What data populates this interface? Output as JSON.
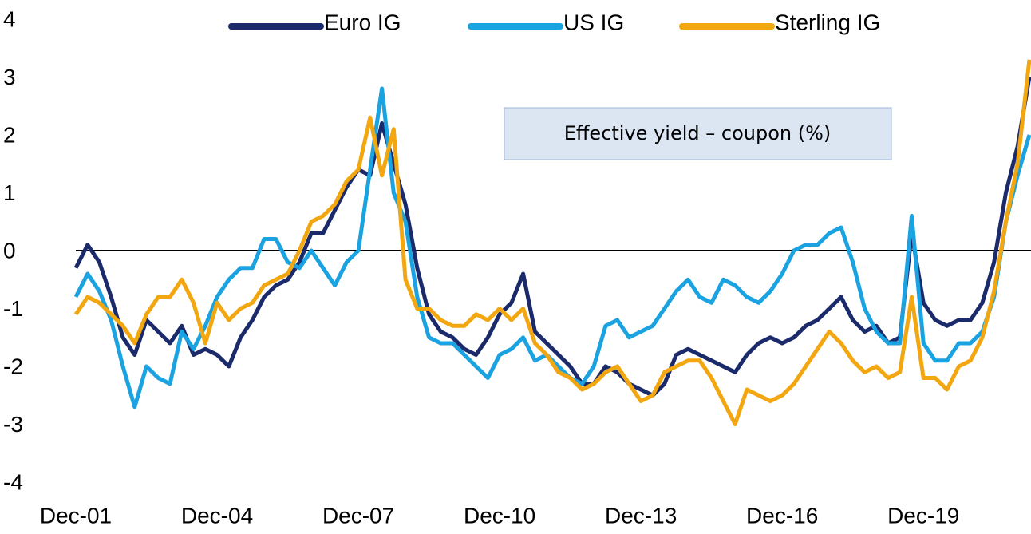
{
  "chart_data": {
    "type": "line",
    "annotation": "Effective yield – coupon (%)",
    "categories": [
      "Dec-01",
      null,
      null,
      null,
      null,
      null,
      null,
      null,
      null,
      null,
      null,
      null,
      "Dec-04",
      null,
      null,
      null,
      null,
      null,
      null,
      null,
      null,
      null,
      null,
      null,
      "Dec-07",
      null,
      null,
      null,
      null,
      null,
      null,
      null,
      null,
      null,
      null,
      null,
      "Dec-10",
      null,
      null,
      null,
      null,
      null,
      null,
      null,
      null,
      null,
      null,
      null,
      "Dec-13",
      null,
      null,
      null,
      null,
      null,
      null,
      null,
      null,
      null,
      null,
      null,
      "Dec-16",
      null,
      null,
      null,
      null,
      null,
      null,
      null,
      null,
      null,
      null,
      null,
      "Dec-19",
      null,
      null,
      null,
      null,
      null,
      null,
      null,
      null,
      null
    ],
    "series": [
      {
        "name": "Euro IG",
        "color": "#1b2a6b",
        "values": [
          -0.3,
          0.1,
          -0.2,
          -0.8,
          -1.5,
          -1.8,
          -1.2,
          -1.4,
          -1.6,
          -1.3,
          -1.8,
          -1.7,
          -1.8,
          -2.0,
          -1.5,
          -1.2,
          -0.8,
          -0.6,
          -0.5,
          -0.2,
          0.3,
          0.3,
          0.7,
          1.1,
          1.4,
          1.3,
          2.2,
          1.5,
          0.8,
          -0.3,
          -1.1,
          -1.4,
          -1.5,
          -1.7,
          -1.8,
          -1.5,
          -1.1,
          -0.9,
          -0.4,
          -1.4,
          -1.6,
          -1.8,
          -2.0,
          -2.3,
          -2.3,
          -2.0,
          -2.1,
          -2.3,
          -2.4,
          -2.5,
          -2.3,
          -1.8,
          -1.7,
          -1.8,
          -1.9,
          -2.0,
          -2.1,
          -1.8,
          -1.6,
          -1.5,
          -1.6,
          -1.5,
          -1.3,
          -1.2,
          -1.0,
          -0.8,
          -1.2,
          -1.4,
          -1.3,
          -1.6,
          -1.5,
          0.3,
          -0.9,
          -1.2,
          -1.3,
          -1.2,
          -1.2,
          -0.9,
          -0.2,
          1.0,
          1.8,
          3.0
        ]
      },
      {
        "name": "US IG",
        "color": "#1aa3e0",
        "values": [
          -0.8,
          -0.4,
          -0.7,
          -1.2,
          -2.0,
          -2.7,
          -2.0,
          -2.2,
          -2.3,
          -1.4,
          -1.7,
          -1.3,
          -0.8,
          -0.5,
          -0.3,
          -0.3,
          0.2,
          0.2,
          -0.2,
          -0.3,
          0.0,
          -0.3,
          -0.6,
          -0.2,
          0.0,
          1.4,
          2.8,
          1.0,
          0.5,
          -0.8,
          -1.5,
          -1.6,
          -1.6,
          -1.8,
          -2.0,
          -2.2,
          -1.8,
          -1.7,
          -1.5,
          -1.9,
          -1.8,
          -2.0,
          -2.2,
          -2.3,
          -2.0,
          -1.3,
          -1.2,
          -1.5,
          -1.4,
          -1.3,
          -1.0,
          -0.7,
          -0.5,
          -0.8,
          -0.9,
          -0.5,
          -0.6,
          -0.8,
          -0.9,
          -0.7,
          -0.4,
          0.0,
          0.1,
          0.1,
          0.3,
          0.4,
          -0.2,
          -1.0,
          -1.4,
          -1.6,
          -1.6,
          0.6,
          -1.6,
          -1.9,
          -1.9,
          -1.6,
          -1.6,
          -1.4,
          -0.8,
          0.5,
          1.3,
          2.0
        ]
      },
      {
        "name": "Sterling IG",
        "color": "#f2a60f",
        "values": [
          -1.1,
          -0.8,
          -0.9,
          -1.1,
          -1.3,
          -1.6,
          -1.1,
          -0.8,
          -0.8,
          -0.5,
          -0.9,
          -1.6,
          -0.9,
          -1.2,
          -1.0,
          -0.9,
          -0.6,
          -0.5,
          -0.4,
          0.0,
          0.5,
          0.6,
          0.8,
          1.2,
          1.4,
          2.3,
          1.3,
          2.1,
          -0.5,
          -1.0,
          -1.0,
          -1.2,
          -1.3,
          -1.3,
          -1.1,
          -1.2,
          -1.0,
          -1.2,
          -1.0,
          -1.6,
          -1.8,
          -2.1,
          -2.2,
          -2.4,
          -2.3,
          -2.1,
          -2.0,
          -2.3,
          -2.6,
          -2.5,
          -2.1,
          -2.0,
          -1.9,
          -1.9,
          -2.2,
          -2.6,
          -3.0,
          -2.4,
          -2.5,
          -2.6,
          -2.5,
          -2.3,
          -2.0,
          -1.7,
          -1.4,
          -1.6,
          -1.9,
          -2.1,
          -2.0,
          -2.2,
          -2.1,
          -0.8,
          -2.2,
          -2.2,
          -2.4,
          -2.0,
          -1.9,
          -1.5,
          -0.7,
          0.5,
          1.5,
          3.3
        ]
      }
    ],
    "ylim": [
      -4,
      4
    ],
    "yticks": [
      4,
      3,
      2,
      1,
      0,
      -1,
      -2,
      -3,
      -4
    ],
    "legend": "top"
  }
}
